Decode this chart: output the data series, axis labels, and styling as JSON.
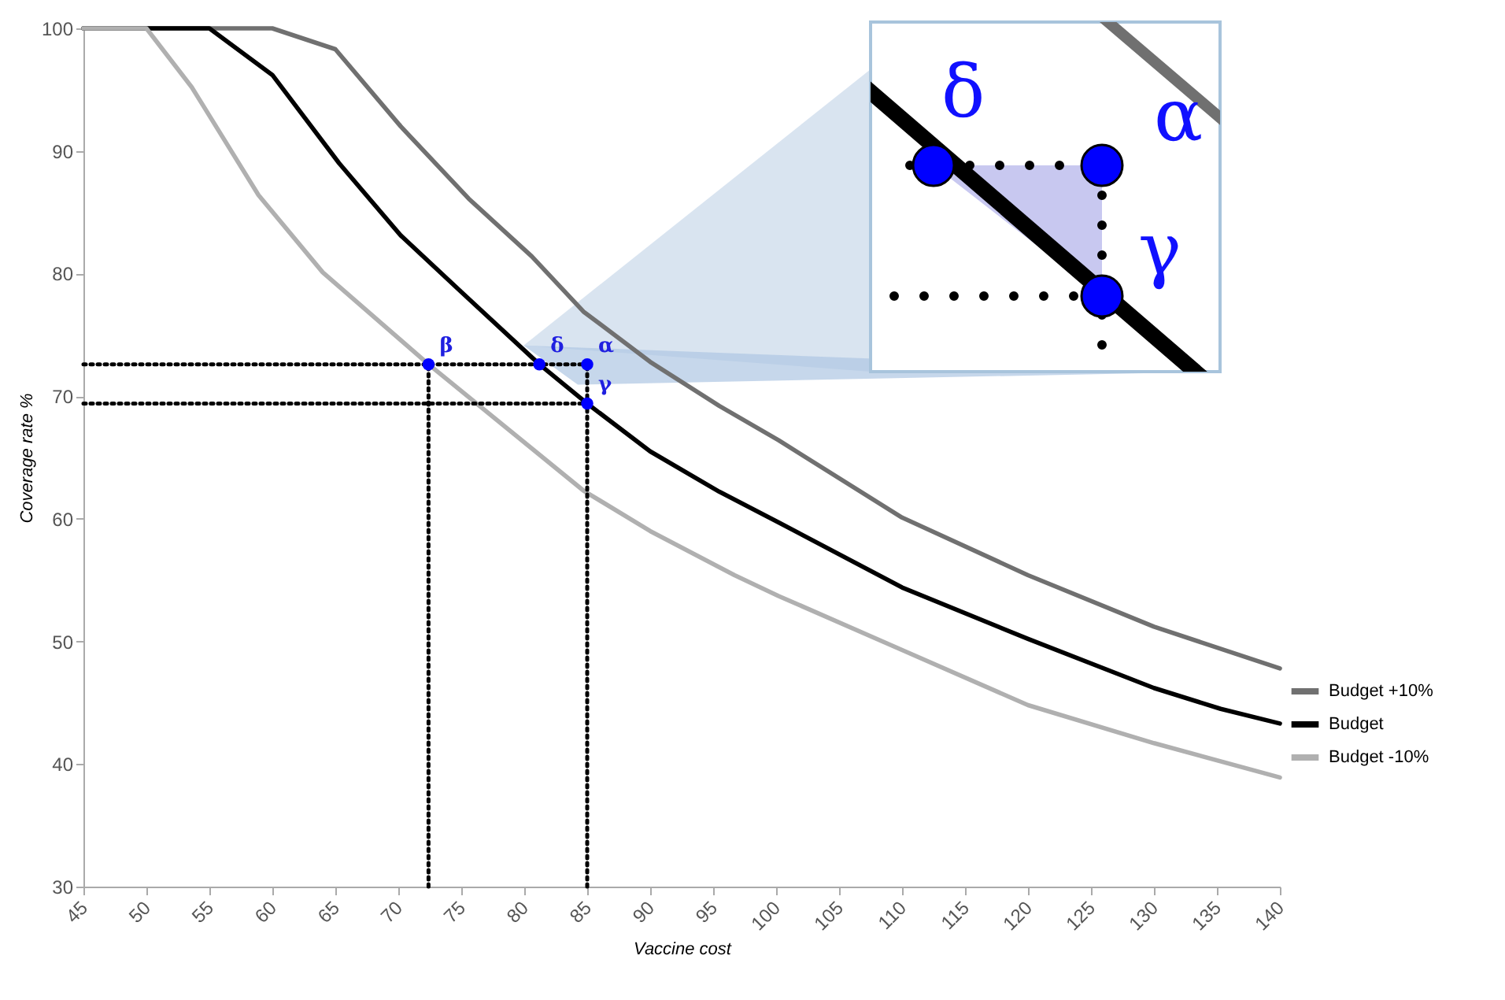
{
  "chart_data": {
    "type": "line",
    "xlabel": "Vaccine cost",
    "ylabel": "Coverage rate %",
    "xlim": [
      45,
      140
    ],
    "xticks": [
      45,
      50,
      55,
      60,
      65,
      70,
      75,
      80,
      85,
      90,
      95,
      100,
      105,
      110,
      115,
      120,
      125,
      130,
      135,
      140
    ],
    "ylim": [
      30,
      100
    ],
    "yticks": [
      30,
      40,
      50,
      60,
      70,
      80,
      90,
      100
    ],
    "grid": false,
    "legend": "right",
    "series": [
      {
        "name": "Budget +10%",
        "color": "#707070",
        "x": [
          45,
          60,
          65,
          70.2,
          75.6,
          80.6,
          84.7,
          90,
          95.5,
          100.2,
          110,
          120,
          130,
          140
        ],
        "values": [
          100,
          100,
          98.3,
          92.0,
          86.1,
          81.4,
          76.9,
          72.8,
          69.2,
          66.4,
          60.1,
          55.4,
          51.2,
          47.8
        ]
      },
      {
        "name": "Budget",
        "color": "#000000",
        "x": [
          45,
          55,
          60,
          65.3,
          70.2,
          75,
          81.2,
          85,
          90,
          95.5,
          100.2,
          110,
          120,
          130,
          135.3,
          140
        ],
        "values": [
          100,
          100,
          96.2,
          89.0,
          83.1,
          78.5,
          72.6,
          69.4,
          65.5,
          62.2,
          59.7,
          54.4,
          50.2,
          46.2,
          44.5,
          43.3
        ]
      },
      {
        "name": "Budget -10%",
        "color": "#b0b0b0",
        "x": [
          45,
          50,
          53.6,
          58.9,
          64,
          72.4,
          84.7,
          90,
          96.7,
          100.2,
          110,
          120,
          130,
          140
        ],
        "values": [
          100,
          100,
          95.2,
          86.4,
          80.1,
          72.6,
          62.3,
          59.0,
          55.4,
          53.7,
          49.3,
          44.8,
          41.7,
          38.9
        ]
      },
      {
        "type": "line",
        "line_style": "dotted",
        "color": "#000000",
        "x": [
          45,
          85
        ],
        "values": [
          72.6,
          72.6
        ]
      },
      {
        "type": "line",
        "line_style": "dotted",
        "color": "#000000",
        "x": [
          45,
          85
        ],
        "values": [
          69.4,
          69.4
        ]
      },
      {
        "type": "line",
        "line_style": "dotted",
        "color": "#000000",
        "x": [
          72.4,
          72.4
        ],
        "values": [
          30,
          72.6
        ]
      },
      {
        "type": "line",
        "line_style": "dotted",
        "color": "#000000",
        "x": [
          85,
          85
        ],
        "values": [
          30,
          72.6
        ]
      },
      {
        "type": "scatter",
        "marker": "circle",
        "color": "#0000ff",
        "x": [
          72.4,
          81.2,
          85,
          85
        ],
        "values": [
          72.6,
          72.6,
          72.6,
          69.4
        ]
      }
    ],
    "annotations": [
      {
        "text": "β",
        "x": 72.4,
        "y": 72.6
      },
      {
        "text": "δ",
        "x": 81.2,
        "y": 72.6
      },
      {
        "text": "α",
        "x": 85,
        "y": 72.6
      },
      {
        "text": "γ",
        "x": 85,
        "y": 69.4
      }
    ]
  }
}
